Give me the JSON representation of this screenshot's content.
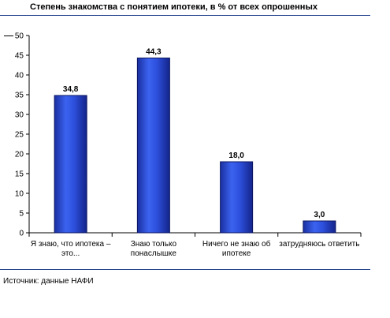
{
  "chart_data": {
    "type": "bar",
    "title": "Степень знакомства с понятием ипотеки, в % от всех опрошенных",
    "categories": [
      [
        "Я знаю, что ипотека –",
        "это..."
      ],
      [
        "Знаю только",
        "понаслышке"
      ],
      [
        "Ничего не знаю об",
        "ипотеке"
      ],
      [
        "затрудняюсь ответить"
      ]
    ],
    "values": [
      34.8,
      44.3,
      18.0,
      3.0
    ],
    "value_labels": [
      "34,8",
      "44,3",
      "18,0",
      "3,0"
    ],
    "yticks": [
      "0",
      "5",
      "10",
      "15",
      "20",
      "25",
      "30",
      "35",
      "40",
      "45",
      "50"
    ],
    "ylim": [
      0,
      50
    ],
    "grid": false,
    "bar_color": "#2b4fd8"
  },
  "source": "Источник: данные НАФИ"
}
